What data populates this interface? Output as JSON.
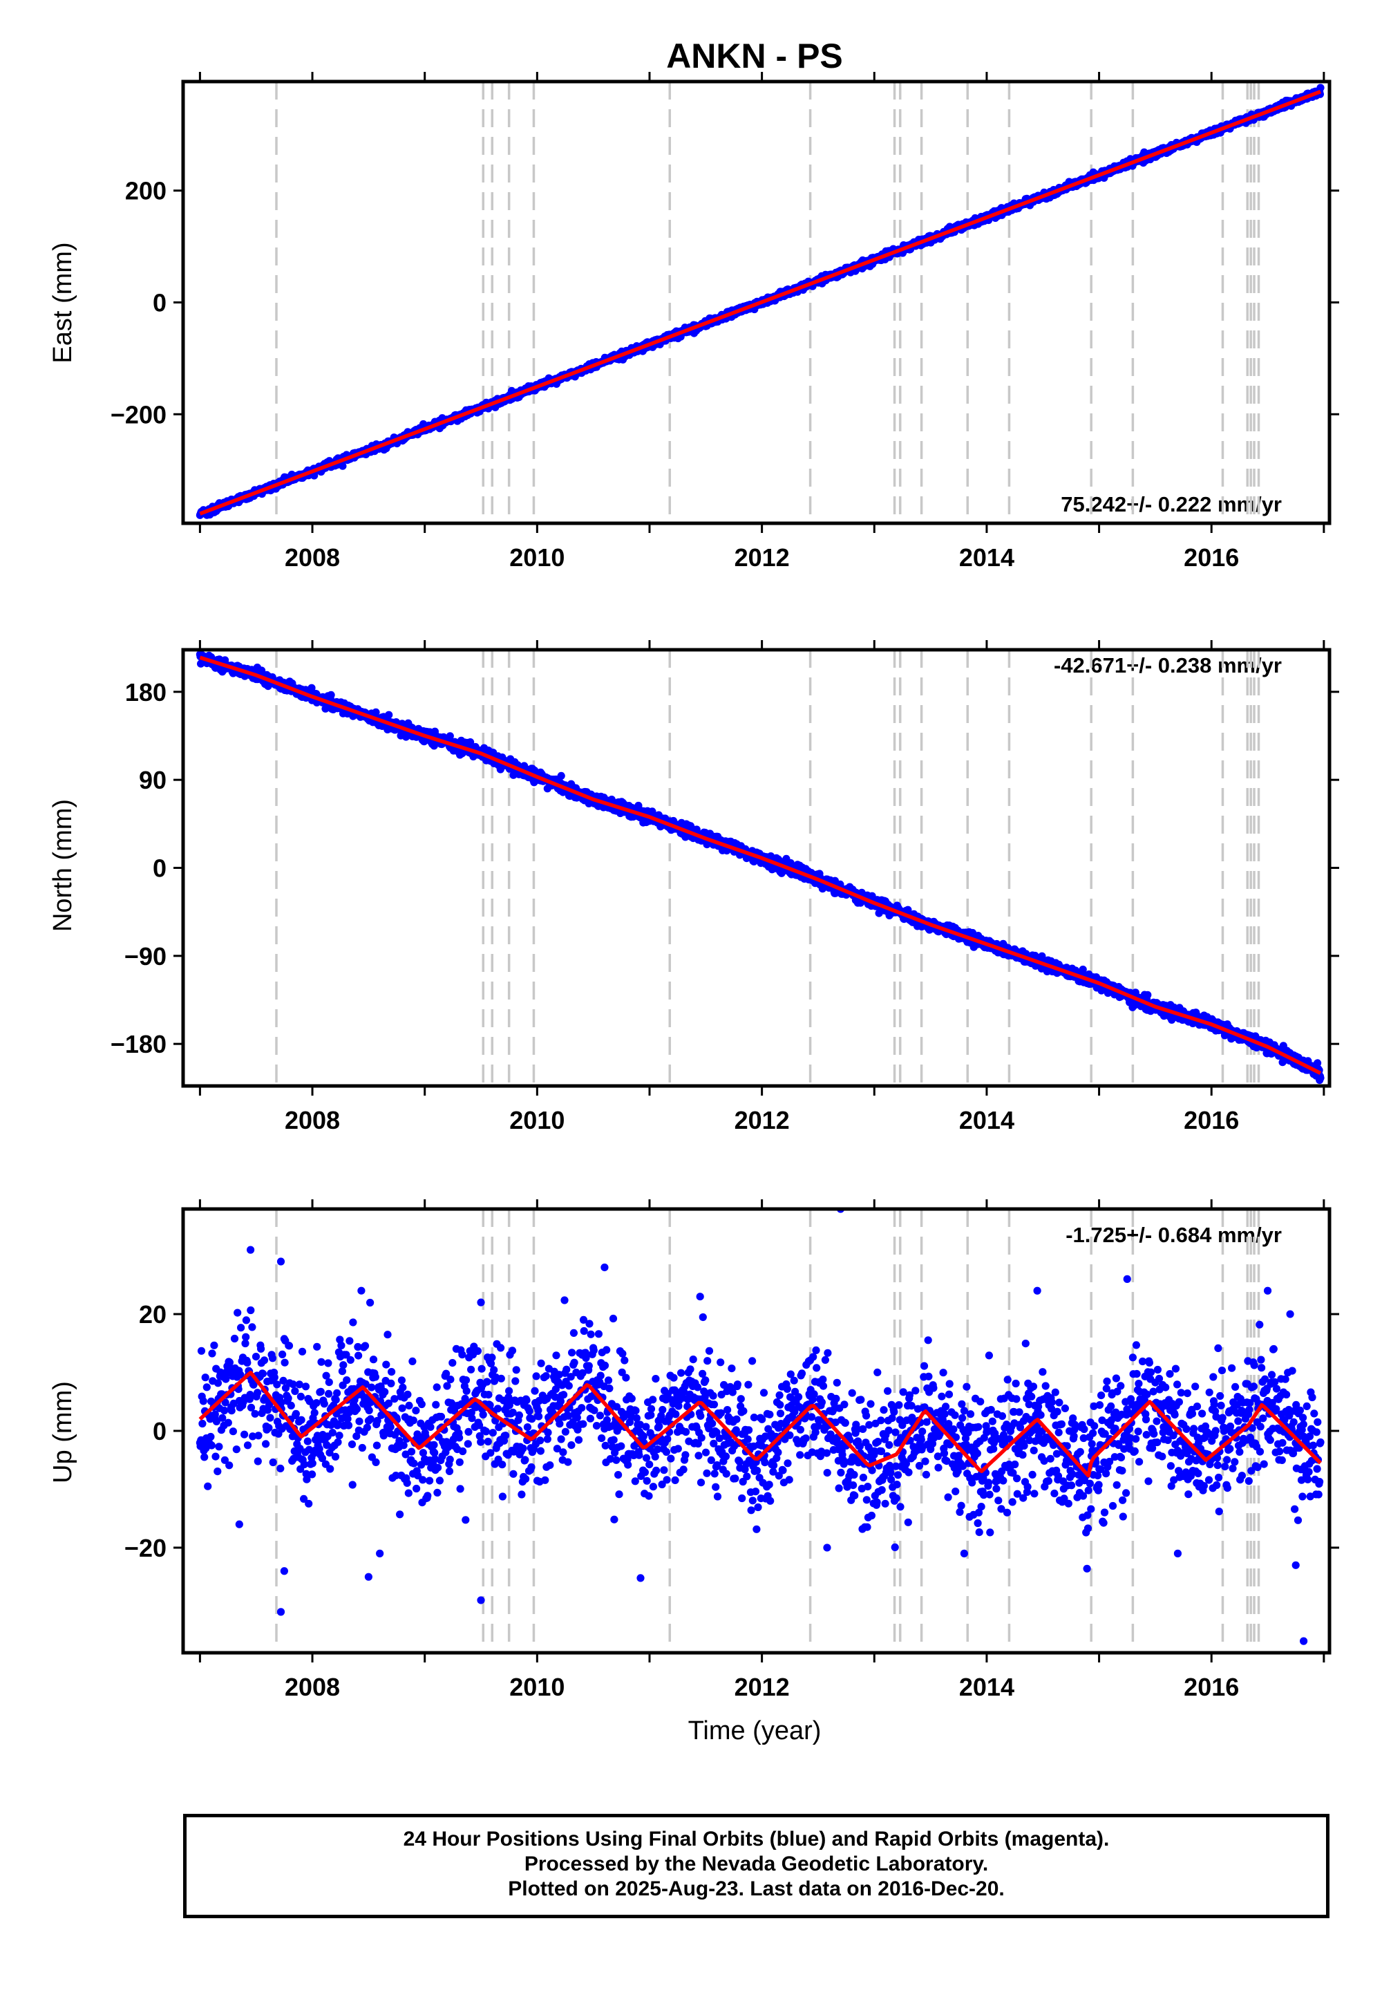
{
  "title": "ANKN - PS",
  "chart_data": [
    {
      "type": "scatter",
      "ylabel": "East (mm)",
      "xlabel": "",
      "xlim": [
        2006.85,
        2017.05
      ],
      "ylim": [
        -395,
        395
      ],
      "yticks": [
        -200,
        0,
        200
      ],
      "ytick_labels": [
        "−200",
        "0",
        "200"
      ],
      "xticks": [
        2008,
        2010,
        2012,
        2014,
        2016
      ],
      "xtick_labels": [
        "2008",
        "2010",
        "2012",
        "2014",
        "2016"
      ],
      "rate_label": "75.242+/- 0.222 mm/yr",
      "rate_position": "bottom-right",
      "series": [
        {
          "kind": "points",
          "color": "#0000ff",
          "trend": "linear",
          "x_range": [
            2007.0,
            2016.97
          ],
          "y_range": [
            -380,
            377
          ],
          "scatter_mm": 3
        },
        {
          "kind": "model-line",
          "color": "#ff0000",
          "x": [
            2007.0,
            2016.97
          ],
          "y": [
            -378,
            377
          ]
        }
      ]
    },
    {
      "type": "scatter",
      "ylabel": "North (mm)",
      "xlabel": "",
      "xlim": [
        2006.85,
        2017.05
      ],
      "ylim": [
        -223,
        223
      ],
      "yticks": [
        -180,
        -90,
        0,
        90,
        180
      ],
      "ytick_labels": [
        "−180",
        "−90",
        "0",
        "90",
        "180"
      ],
      "xticks": [
        2008,
        2010,
        2012,
        2014,
        2016
      ],
      "xtick_labels": [
        "2008",
        "2010",
        "2012",
        "2014",
        "2016"
      ],
      "rate_label": "-42.671+/- 0.238 mm/yr",
      "rate_position": "top-right",
      "series": [
        {
          "kind": "points",
          "color": "#0000ff",
          "trend": "piecewise",
          "x": [
            2007.0,
            2007.5,
            2008.0,
            2008.5,
            2009.0,
            2009.5,
            2010.0,
            2010.5,
            2011.0,
            2011.5,
            2012.0,
            2012.5,
            2013.0,
            2013.5,
            2014.0,
            2014.5,
            2015.0,
            2015.5,
            2016.0,
            2016.5,
            2016.97
          ],
          "y": [
            215,
            197,
            175,
            155,
            135,
            117,
            93,
            70,
            52,
            30,
            10,
            -12,
            -36,
            -58,
            -78,
            -98,
            -118,
            -142,
            -160,
            -183,
            -210
          ],
          "scatter_mm": 3
        },
        {
          "kind": "model-line",
          "color": "#ff0000",
          "x": [
            2007.0,
            2007.5,
            2008.0,
            2008.5,
            2009.0,
            2009.5,
            2010.0,
            2010.5,
            2011.0,
            2011.5,
            2012.0,
            2012.5,
            2013.0,
            2013.5,
            2014.0,
            2014.5,
            2015.0,
            2015.5,
            2016.0,
            2016.5,
            2016.97
          ],
          "y": [
            215,
            197,
            175,
            155,
            135,
            117,
            93,
            70,
            52,
            30,
            10,
            -12,
            -36,
            -58,
            -78,
            -98,
            -118,
            -142,
            -160,
            -183,
            -210
          ]
        }
      ]
    },
    {
      "type": "scatter",
      "ylabel": "Up (mm)",
      "xlabel": "Time (year)",
      "xlim": [
        2006.85,
        2017.05
      ],
      "ylim": [
        -38,
        38
      ],
      "yticks": [
        -20,
        0,
        20
      ],
      "ytick_labels": [
        "−20",
        "0",
        "20"
      ],
      "xticks": [
        2008,
        2010,
        2012,
        2014,
        2016
      ],
      "xtick_labels": [
        "2008",
        "2010",
        "2012",
        "2014",
        "2016"
      ],
      "rate_label": "-1.725+/- 0.684 mm/yr",
      "rate_position": "top-right",
      "series": [
        {
          "kind": "points",
          "color": "#0000ff",
          "trend": "seasonal",
          "x_range": [
            2007.0,
            2016.97
          ],
          "scatter_mm": 5
        },
        {
          "kind": "model-line",
          "color": "#ff0000",
          "x": [
            2007.0,
            2007.45,
            2007.9,
            2008.45,
            2008.95,
            2009.45,
            2009.6,
            2009.95,
            2010.45,
            2010.95,
            2011.45,
            2011.95,
            2012.45,
            2012.95,
            2013.2,
            2013.45,
            2013.95,
            2014.45,
            2014.92,
            2014.93,
            2015.45,
            2015.95,
            2016.33,
            2016.45,
            2016.97
          ],
          "y": [
            2,
            10,
            -1,
            7.5,
            -3,
            5.5,
            3,
            -1.5,
            8,
            -3,
            5,
            -5,
            4.5,
            -6,
            -4,
            3.5,
            -7,
            2,
            -8,
            -5,
            5,
            -5,
            1,
            4.5,
            -5.5
          ]
        }
      ]
    }
  ],
  "offset_lines": {
    "color": "#c8c8c8",
    "style": "dashed",
    "years": [
      2007.68,
      2009.52,
      2009.6,
      2009.75,
      2009.97,
      2011.18,
      2012.43,
      2013.18,
      2013.23,
      2013.42,
      2013.83,
      2014.2,
      2014.93,
      2015.3,
      2016.1,
      2016.32,
      2016.35,
      2016.38,
      2016.42
    ]
  },
  "caption": {
    "line1": "24 Hour Positions Using Final Orbits (blue) and Rapid Orbits (magenta).",
    "line2": "Processed by the Nevada Geodetic Laboratory.",
    "line3": "Plotted on 2025-Aug-23. Last data on 2016-Dec-20."
  }
}
